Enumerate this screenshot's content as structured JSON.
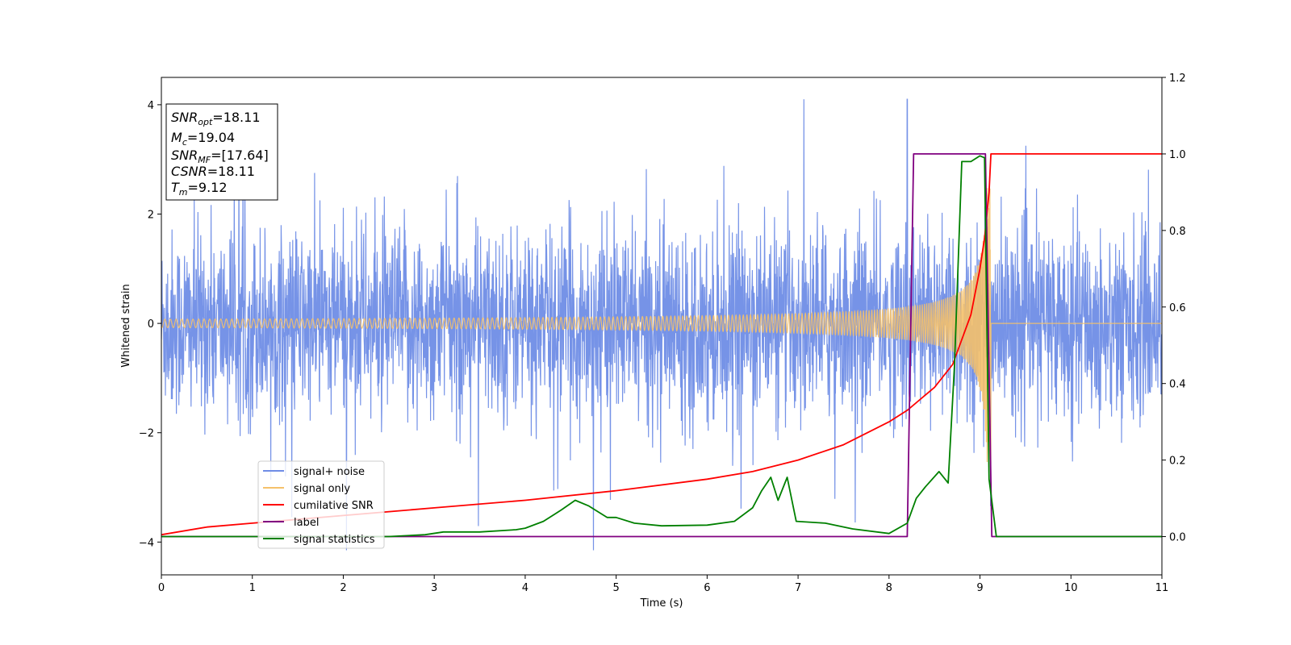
{
  "chart_data": {
    "type": "line",
    "xlabel": "Time (s)",
    "ylabel": "Whitened strain",
    "xlim": [
      0,
      11
    ],
    "ylim_left": [
      -4.6,
      4.5
    ],
    "ylim_right": [
      -0.1,
      1.2
    ],
    "x_ticks": [
      "0",
      "1",
      "2",
      "3",
      "4",
      "5",
      "6",
      "7",
      "8",
      "9",
      "10",
      "11"
    ],
    "y_ticks_left": [
      "4",
      "2",
      "0",
      "−2",
      "−4"
    ],
    "y_ticks_left_values": [
      4,
      2,
      0,
      -2,
      -4
    ],
    "y_ticks_right": [
      "1.2",
      "1.0",
      "0.8",
      "0.6",
      "0.4",
      "0.2",
      "0.0"
    ],
    "y_ticks_right_values": [
      1.2,
      1.0,
      0.8,
      0.6,
      0.4,
      0.2,
      0.0
    ],
    "legend_position": "lower-left",
    "info_box": [
      {
        "base": "SNR",
        "sub": "opt",
        "value": "=18.11"
      },
      {
        "base": "M",
        "sub": "c",
        "value": "=19.04"
      },
      {
        "base": "SNR",
        "sub": "MF",
        "value": "=[17.64]"
      },
      {
        "base": "CSNR",
        "sub": "",
        "value": "=18.11"
      },
      {
        "base": "T",
        "sub": "m",
        "value": "=9.12"
      }
    ],
    "series": [
      {
        "name": "signal+ noise",
        "axis": "left",
        "color": "#6f8de6",
        "description": "noisy whitened strain, amplitude roughly ±2 to ±3, occasional spikes (max ≈4.1 at t≈8.2, min ≈−4.1 at t≈4.75)"
      },
      {
        "name": "signal only",
        "axis": "left",
        "color": "#f5c16a",
        "chirp": {
          "t_end": 9.12,
          "amp_start": 0.02,
          "amp_end": 2.6
        }
      },
      {
        "name": "cumilative SNR",
        "axis": "right",
        "color": "#ff0000",
        "x": [
          0,
          0.5,
          1,
          2,
          3,
          4,
          5,
          6,
          6.5,
          7,
          7.5,
          8,
          8.2,
          8.5,
          8.7,
          8.9,
          9.0,
          9.05,
          9.1,
          9.12,
          11
        ],
        "y": [
          0.005,
          0.025,
          0.035,
          0.055,
          0.075,
          0.095,
          0.12,
          0.15,
          0.17,
          0.2,
          0.24,
          0.3,
          0.33,
          0.39,
          0.45,
          0.58,
          0.7,
          0.78,
          0.9,
          1.0,
          1.0
        ]
      },
      {
        "name": "label",
        "axis": "right",
        "color": "#800080",
        "x": [
          0,
          8.2,
          8.27,
          9.06,
          9.13,
          11
        ],
        "y": [
          0.0,
          0.0,
          1.0,
          1.0,
          0.0,
          0.0
        ]
      },
      {
        "name": "signal statistics",
        "axis": "right",
        "color": "#008000",
        "x": [
          0,
          2.5,
          2.9,
          3.1,
          3.5,
          3.9,
          4.0,
          4.2,
          4.4,
          4.55,
          4.7,
          4.9,
          5.0,
          5.2,
          5.5,
          6.0,
          6.3,
          6.5,
          6.6,
          6.7,
          6.78,
          6.88,
          6.98,
          7.3,
          7.6,
          8.0,
          8.2,
          8.3,
          8.4,
          8.55,
          8.65,
          8.72,
          8.8,
          8.9,
          9.0,
          9.05,
          9.1,
          9.18,
          11
        ],
        "y": [
          0.0,
          0.0,
          0.005,
          0.012,
          0.012,
          0.018,
          0.022,
          0.04,
          0.07,
          0.095,
          0.08,
          0.05,
          0.05,
          0.035,
          0.028,
          0.03,
          0.04,
          0.075,
          0.12,
          0.155,
          0.095,
          0.155,
          0.04,
          0.035,
          0.02,
          0.008,
          0.035,
          0.1,
          0.13,
          0.17,
          0.14,
          0.45,
          0.98,
          0.98,
          0.995,
          0.99,
          0.15,
          0.0,
          0.0
        ]
      }
    ]
  }
}
